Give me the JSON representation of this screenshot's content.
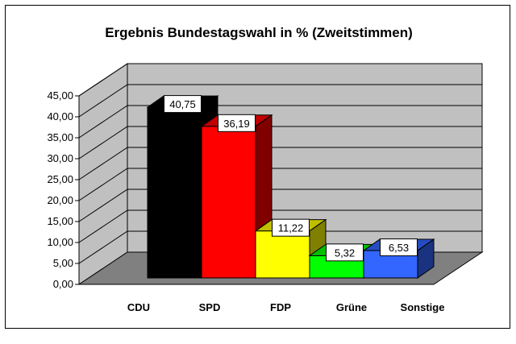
{
  "chart_data": {
    "type": "bar",
    "title": "Ergebnis Bundestagswahl in % (Zweitstimmen)",
    "xlabel": "",
    "ylabel": "",
    "categories": [
      "CDU",
      "SPD",
      "FDP",
      "Grüne",
      "Sonstige"
    ],
    "values": [
      40.75,
      36.19,
      11.22,
      5.32,
      6.53
    ],
    "data_labels": [
      "40,75",
      "36,19",
      "11,22",
      "5,32",
      "6,53"
    ],
    "colors": [
      "#000000",
      "#ff0000",
      "#ffff00",
      "#00ff00",
      "#3366ff"
    ],
    "ylim": [
      0,
      45
    ],
    "yticks": [
      "0,00",
      "5,00",
      "10,00",
      "15,00",
      "20,00",
      "25,00",
      "30,00",
      "35,00",
      "40,00",
      "45,00"
    ],
    "grid": true,
    "style": "3d-clustered-column",
    "wall_color": "#c0c0c0",
    "floor_color": "#808080"
  }
}
